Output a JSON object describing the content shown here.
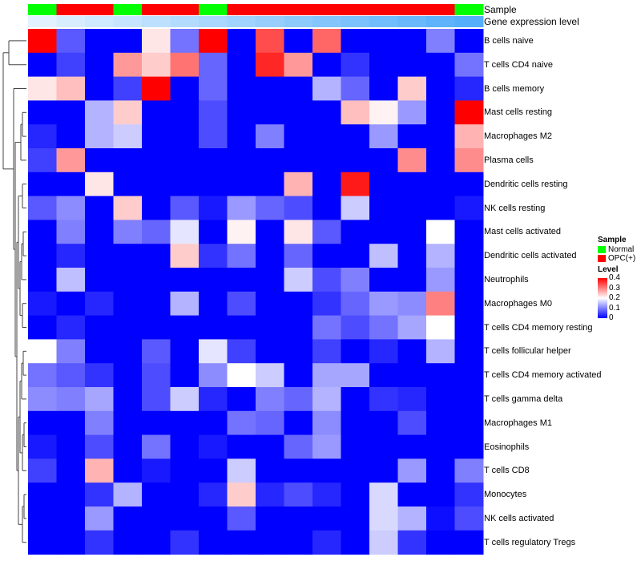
{
  "chart_data": {
    "type": "heatmap",
    "annotations": {
      "sample_label": "Sample",
      "level_label": "Gene expression level",
      "sample_groups": [
        "Normal",
        "OPC(+)",
        "OPC(+)",
        "Normal",
        "OPC(+)",
        "OPC(+)",
        "Normal",
        "OPC(+)",
        "OPC(+)",
        "OPC(+)",
        "OPC(+)",
        "OPC(+)",
        "OPC(+)",
        "OPC(+)",
        "OPC(+)",
        "Normal"
      ],
      "gene_expression_level": [
        0.02,
        0.04,
        0.06,
        0.08,
        0.1,
        0.12,
        0.14,
        0.16,
        0.18,
        0.2,
        0.22,
        0.24,
        0.26,
        0.28,
        0.3,
        0.32
      ]
    },
    "rows": [
      "B cells naive",
      "T cells CD4 naive",
      "B cells memory",
      "Mast cells resting",
      "Macrophages M2",
      "Plasma cells",
      "Dendritic cells resting",
      "NK cells resting",
      "Mast cells activated",
      "Dendritic cells activated",
      "Neutrophils",
      "Macrophages M0",
      "T cells CD4 memory resting",
      "T cells follicular helper",
      "T cells CD4 memory activated",
      "T cells gamma delta",
      "Macrophages M1",
      "Eosinophils",
      "T cells CD8",
      "Monocytes",
      "NK cells activated",
      "T cells regulatory  Tregs"
    ],
    "values": [
      [
        0.4,
        0.07,
        0,
        0,
        0.22,
        0.09,
        0.4,
        0,
        0.34,
        0,
        0.32,
        0,
        0,
        0,
        0.1,
        0
      ],
      [
        0,
        0.05,
        0,
        0.28,
        0.24,
        0.31,
        0.08,
        0,
        0.37,
        0.28,
        0,
        0.04,
        0,
        0,
        0,
        0.09
      ],
      [
        0.22,
        0.25,
        0,
        0.05,
        0.4,
        0,
        0.08,
        0,
        0,
        0,
        0.14,
        0.08,
        0,
        0.24,
        0,
        0.03
      ],
      [
        0,
        0,
        0.14,
        0.24,
        0,
        0,
        0.06,
        0,
        0,
        0,
        0,
        0.25,
        0.21,
        0.12,
        0,
        0.4
      ],
      [
        0.03,
        0,
        0.14,
        0.16,
        0,
        0,
        0.06,
        0,
        0.1,
        0,
        0,
        0,
        0.12,
        0,
        0,
        0.26
      ],
      [
        0.05,
        0.28,
        0,
        0,
        0,
        0,
        0,
        0,
        0,
        0,
        0,
        0,
        0,
        0.29,
        0,
        0.29
      ],
      [
        0,
        0,
        0.22,
        0,
        0,
        0,
        0,
        0,
        0,
        0.26,
        0,
        0.38,
        0,
        0,
        0,
        0
      ],
      [
        0.07,
        0.11,
        0,
        0.24,
        0,
        0.07,
        0.02,
        0.12,
        0.08,
        0.06,
        0,
        0.16,
        0,
        0,
        0,
        0.02
      ],
      [
        0,
        0.1,
        0,
        0.1,
        0.08,
        0.18,
        0,
        0.21,
        0,
        0.22,
        0.07,
        0,
        0,
        0,
        0.2,
        0
      ],
      [
        0,
        0.03,
        0,
        0,
        0,
        0.24,
        0.04,
        0.09,
        0,
        0.08,
        0,
        0,
        0.15,
        0,
        0.14,
        0
      ],
      [
        0,
        0.15,
        0,
        0,
        0,
        0,
        0,
        0,
        0,
        0.16,
        0.06,
        0.1,
        0,
        0,
        0.12,
        0
      ],
      [
        0.02,
        0,
        0.03,
        0,
        0,
        0.14,
        0,
        0.06,
        0,
        0,
        0.04,
        0.08,
        0.12,
        0.11,
        0.3,
        0
      ],
      [
        0,
        0.03,
        0,
        0,
        0,
        0,
        0,
        0,
        0,
        0,
        0.09,
        0.06,
        0.09,
        0.13,
        0.2,
        0
      ],
      [
        0.2,
        0.1,
        0,
        0,
        0.07,
        0,
        0.18,
        0.05,
        0,
        0,
        0.05,
        0,
        0.03,
        0,
        0.14,
        0
      ],
      [
        0.09,
        0.07,
        0.04,
        0,
        0.06,
        0,
        0.11,
        0.2,
        0.16,
        0,
        0.13,
        0.13,
        0,
        0,
        0,
        0
      ],
      [
        0.11,
        0.1,
        0.13,
        0,
        0.06,
        0.16,
        0.03,
        0,
        0.1,
        0.08,
        0.14,
        0,
        0.04,
        0.03,
        0,
        0
      ],
      [
        0,
        0,
        0.1,
        0,
        0,
        0,
        0,
        0.09,
        0.08,
        0,
        0.11,
        0,
        0,
        0.06,
        0,
        0
      ],
      [
        0.02,
        0,
        0.06,
        0,
        0.09,
        0,
        0.02,
        0,
        0,
        0.08,
        0.12,
        0,
        0,
        0,
        0,
        0
      ],
      [
        0.05,
        0,
        0.26,
        0,
        0.02,
        0,
        0,
        0.16,
        0,
        0,
        0,
        0,
        0,
        0.12,
        0,
        0.1
      ],
      [
        0,
        0,
        0.04,
        0.14,
        0,
        0,
        0.03,
        0.24,
        0.03,
        0.06,
        0.03,
        0,
        0.17,
        0,
        0,
        0.04
      ],
      [
        0,
        0,
        0.12,
        0,
        0,
        0,
        0,
        0.07,
        0,
        0,
        0,
        0,
        0.17,
        0.14,
        0.01,
        0.06
      ],
      [
        0,
        0,
        0.04,
        0,
        0,
        0.04,
        0,
        0,
        0,
        0,
        0.03,
        0,
        0.16,
        0.04,
        0,
        0
      ]
    ],
    "color_scale": {
      "min": 0,
      "mid": 0.2,
      "max": 0.4,
      "low_color": "#0000ff",
      "mid_color": "#ffffff",
      "high_color": "#ff0000"
    },
    "legend": {
      "sample_title": "Sample",
      "sample_items": [
        {
          "label": "Normal",
          "color": "#00ff00"
        },
        {
          "label": "OPC(+)",
          "color": "#ff0000"
        }
      ],
      "level_title": "Level",
      "level_ticks": [
        "0.4",
        "0.3",
        "0.2",
        "0.1",
        "0"
      ]
    },
    "dendrogram": "row"
  }
}
